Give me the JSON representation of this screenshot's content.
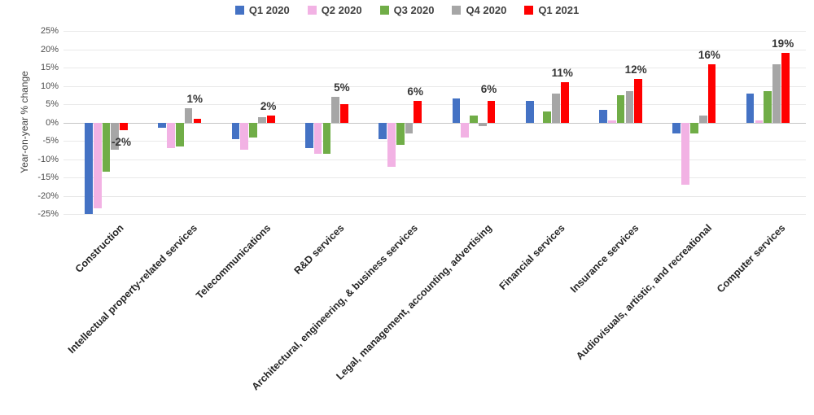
{
  "y_axis": {
    "title": "Year-on-year % change",
    "tick_labels": [
      "25%",
      "20%",
      "15%",
      "10%",
      "5%",
      "0%",
      "-5%",
      "-10%",
      "-15%",
      "-20%",
      "-25%"
    ],
    "tick_values": [
      25,
      20,
      15,
      10,
      5,
      0,
      -5,
      -10,
      -15,
      -20,
      -25
    ]
  },
  "chart_data": {
    "type": "bar",
    "title": "",
    "xlabel": "",
    "ylabel": "Year-on-year % change",
    "ylim": [
      -25,
      25
    ],
    "grid": true,
    "legend_position": "top",
    "categories": [
      "Construction",
      "Intellectual property-related services",
      "Telecommunications",
      "R&D services",
      "Architectural, engineering, & business services",
      "Legal, management, accounting, advertising",
      "Financial services",
      "Insurance services",
      "Audiovisuals, artistic, and recreational",
      "Computer services"
    ],
    "series": [
      {
        "name": "Q1 2020",
        "color": "#4472C4",
        "values": [
          -25,
          -1.5,
          -4.5,
          -7,
          -4.5,
          6.5,
          6,
          3.5,
          -3,
          8
        ]
      },
      {
        "name": "Q2 2020",
        "color": "#F2B2E4",
        "values": [
          -23.5,
          -7,
          -7.5,
          -8.5,
          -12,
          -4,
          0,
          0.5,
          -17,
          0.5
        ]
      },
      {
        "name": "Q3 2020",
        "color": "#70AD47",
        "values": [
          -13.5,
          -6.5,
          -4,
          -8.5,
          -6,
          2,
          3,
          7.5,
          -3,
          8.5
        ]
      },
      {
        "name": "Q4 2020",
        "color": "#A6A6A6",
        "values": [
          -7.5,
          4,
          1.5,
          7,
          -3,
          -1,
          8,
          8.5,
          2,
          16
        ]
      },
      {
        "name": "Q1 2021",
        "color": "#FF0000",
        "values": [
          -2,
          1,
          2,
          5,
          6,
          6,
          11,
          12,
          16,
          19
        ]
      }
    ],
    "data_labels": {
      "series": "Q1 2021",
      "values": [
        "-2%",
        "1%",
        "2%",
        "5%",
        "6%",
        "6%",
        "11%",
        "12%",
        "16%",
        "19%"
      ]
    }
  }
}
